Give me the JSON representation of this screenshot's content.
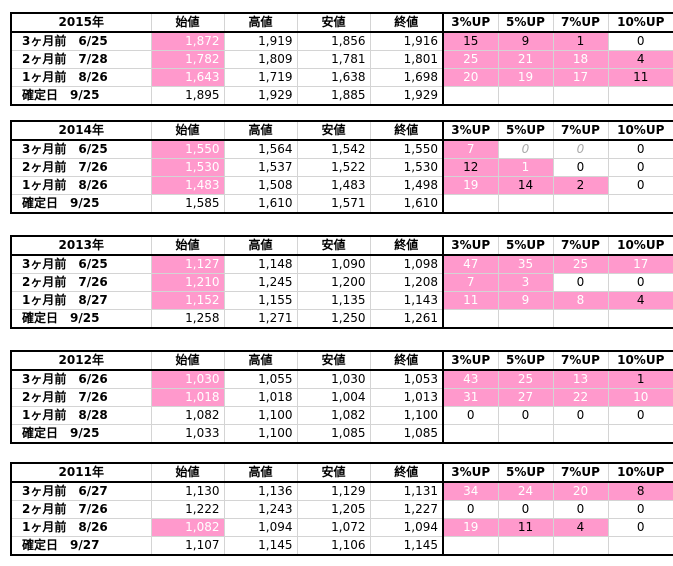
{
  "headers": [
    "始値",
    "高値",
    "安値",
    "終値",
    "3%UP",
    "5%UP",
    "7%UP",
    "10%UP"
  ],
  "blocks": [
    {
      "year": "2015年",
      "rows": [
        {
          "label": "3ヶ月前　6/25",
          "open": "1,872",
          "high": "1,919",
          "low": "1,856",
          "close": "1,916",
          "up3": "15",
          "up5": "9",
          "up7": "1",
          "up10": "0",
          "pink": [
            1,
            0,
            0,
            0,
            1,
            1,
            1,
            0
          ]
        },
        {
          "label": "2ヶ月前　7/28",
          "open": "1,782",
          "high": "1,809",
          "low": "1,781",
          "close": "1,801",
          "up3": "25",
          "up5": "21",
          "up7": "18",
          "up10": "4",
          "pink": [
            1,
            0,
            0,
            0,
            1,
            1,
            1,
            1
          ]
        },
        {
          "label": "1ヶ月前　8/26",
          "open": "1,643",
          "high": "1,719",
          "low": "1,638",
          "close": "1,698",
          "up3": "20",
          "up5": "19",
          "up7": "17",
          "up10": "11",
          "pink": [
            1,
            0,
            0,
            0,
            1,
            1,
            1,
            1
          ]
        },
        {
          "label": "確定日　9/25",
          "open": "1,895",
          "high": "1,929",
          "low": "1,885",
          "close": "1,929",
          "up3": "",
          "up5": "",
          "up7": "",
          "up10": "",
          "pink": [
            0,
            0,
            0,
            0,
            0,
            0,
            0,
            0
          ]
        }
      ]
    },
    {
      "year": "2014年",
      "rows": [
        {
          "label": "3ヶ月前　6/25",
          "open": "1,550",
          "high": "1,564",
          "low": "1,542",
          "close": "1,550",
          "up3": "7",
          "up5": "0",
          "up7": "0",
          "up10": "0",
          "pink": [
            1,
            0,
            0,
            0,
            1,
            0,
            0,
            0
          ]
        },
        {
          "label": "2ヶ月前　7/26",
          "open": "1,530",
          "high": "1,537",
          "low": "1,522",
          "close": "1,530",
          "up3": "12",
          "up5": "1",
          "up7": "0",
          "up10": "0",
          "pink": [
            1,
            0,
            0,
            0,
            1,
            1,
            0,
            0
          ]
        },
        {
          "label": "1ヶ月前　8/26",
          "open": "1,483",
          "high": "1,508",
          "low": "1,483",
          "close": "1,498",
          "up3": "19",
          "up5": "14",
          "up7": "2",
          "up10": "0",
          "pink": [
            1,
            0,
            0,
            0,
            1,
            1,
            1,
            0
          ]
        },
        {
          "label": "確定日　9/25",
          "open": "1,585",
          "high": "1,610",
          "low": "1,571",
          "close": "1,610",
          "up3": "",
          "up5": "",
          "up7": "",
          "up10": "",
          "pink": [
            0,
            0,
            0,
            0,
            0,
            0,
            0,
            0
          ]
        }
      ]
    },
    {
      "year": "2013年",
      "rows": [
        {
          "label": "3ヶ月前　6/25",
          "open": "1,127",
          "high": "1,148",
          "low": "1,090",
          "close": "1,098",
          "up3": "47",
          "up5": "35",
          "up7": "25",
          "up10": "17",
          "pink": [
            1,
            0,
            0,
            0,
            1,
            1,
            1,
            1
          ]
        },
        {
          "label": "2ヶ月前　7/26",
          "open": "1,210",
          "high": "1,245",
          "low": "1,200",
          "close": "1,208",
          "up3": "7",
          "up5": "3",
          "up7": "0",
          "up10": "0",
          "pink": [
            1,
            0,
            0,
            0,
            1,
            1,
            0,
            0
          ]
        },
        {
          "label": "1ヶ月前　8/27",
          "open": "1,152",
          "high": "1,155",
          "low": "1,135",
          "close": "1,143",
          "up3": "11",
          "up5": "9",
          "up7": "8",
          "up10": "4",
          "pink": [
            1,
            0,
            0,
            0,
            1,
            1,
            1,
            1
          ]
        },
        {
          "label": "確定日　9/25",
          "open": "1,258",
          "high": "1,271",
          "low": "1,250",
          "close": "1,261",
          "up3": "",
          "up5": "",
          "up7": "",
          "up10": "",
          "pink": [
            0,
            0,
            0,
            0,
            0,
            0,
            0,
            0
          ]
        }
      ]
    },
    {
      "year": "2012年",
      "rows": [
        {
          "label": "3ヶ月前　6/26",
          "open": "1,030",
          "high": "1,055",
          "low": "1,030",
          "close": "1,053",
          "up3": "43",
          "up5": "25",
          "up7": "13",
          "up10": "1",
          "pink": [
            1,
            0,
            0,
            0,
            1,
            1,
            1,
            1
          ]
        },
        {
          "label": "2ヶ月前　7/26",
          "open": "1,018",
          "high": "1,018",
          "low": "1,004",
          "close": "1,013",
          "up3": "31",
          "up5": "27",
          "up7": "22",
          "up10": "10",
          "pink": [
            1,
            0,
            0,
            0,
            1,
            1,
            1,
            1
          ]
        },
        {
          "label": "1ヶ月前　8/28",
          "open": "1,082",
          "high": "1,100",
          "low": "1,082",
          "close": "1,100",
          "up3": "0",
          "up5": "0",
          "up7": "0",
          "up10": "0",
          "pink": [
            0,
            0,
            0,
            0,
            0,
            0,
            0,
            0
          ]
        },
        {
          "label": "確定日　9/25",
          "open": "1,033",
          "high": "1,100",
          "low": "1,085",
          "close": "1,085",
          "up3": "",
          "up5": "",
          "up7": "",
          "up10": "",
          "pink": [
            0,
            0,
            0,
            0,
            0,
            0,
            0,
            0
          ]
        }
      ]
    },
    {
      "year": "2011年",
      "rows": [
        {
          "label": "3ヶ月前　6/27",
          "open": "1,130",
          "high": "1,136",
          "low": "1,129",
          "close": "1,131",
          "up3": "34",
          "up5": "24",
          "up7": "20",
          "up10": "8",
          "pink": [
            0,
            0,
            0,
            0,
            1,
            1,
            1,
            1
          ]
        },
        {
          "label": "2ヶ月前　7/26",
          "open": "1,222",
          "high": "1,243",
          "low": "1,205",
          "close": "1,227",
          "up3": "0",
          "up5": "0",
          "up7": "0",
          "up10": "0",
          "pink": [
            0,
            0,
            0,
            0,
            0,
            0,
            0,
            0
          ]
        },
        {
          "label": "1ヶ月前　8/26",
          "open": "1,082",
          "high": "1,094",
          "low": "1,072",
          "close": "1,094",
          "up3": "19",
          "up5": "11",
          "up7": "4",
          "up10": "0",
          "pink": [
            1,
            0,
            0,
            0,
            1,
            1,
            1,
            0
          ]
        },
        {
          "label": "確定日　9/27",
          "open": "1,107",
          "high": "1,145",
          "low": "1,106",
          "close": "1,145",
          "up3": "",
          "up5": "",
          "up7": "",
          "up10": "",
          "pink": [
            0,
            0,
            0,
            0,
            0,
            0,
            0,
            0
          ]
        }
      ]
    }
  ],
  "colors": {
    "highlight": "#ff99cc",
    "grid": "#d4d4d4",
    "border": "#000000"
  }
}
